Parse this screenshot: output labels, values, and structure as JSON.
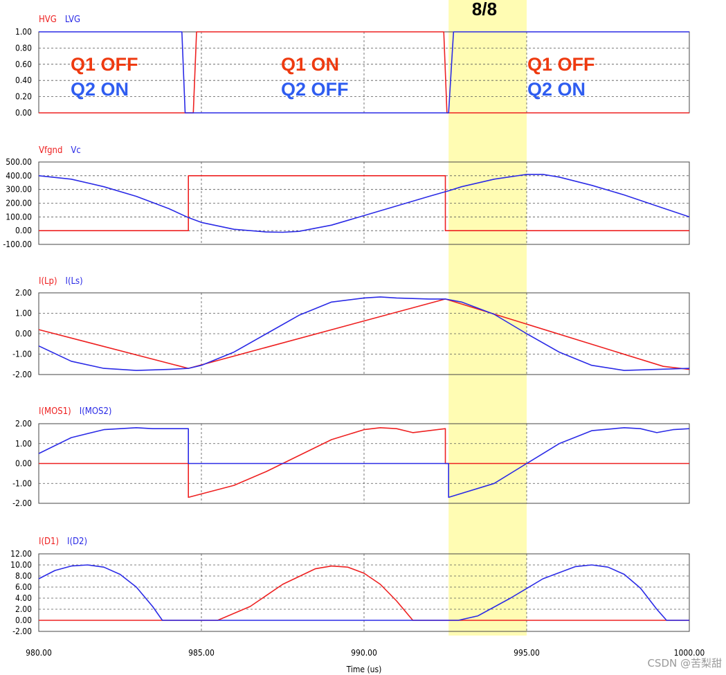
{
  "header_label": "8/8",
  "x_axis": {
    "label": "Time (us)",
    "range": [
      980,
      1000
    ],
    "ticks": [
      "980.00",
      "985.00",
      "990.00",
      "995.00",
      "1000.00"
    ]
  },
  "highlight_band": {
    "x_start": 992.6,
    "x_end": 995.0,
    "color": "#fffcb3"
  },
  "watermark": "CSDN @苦梨甜",
  "colors": {
    "red": "#ee2020",
    "blue": "#2a2ae6",
    "text_red": "#ee3a10",
    "text_blue": "#2f5df0"
  },
  "chart_data": [
    {
      "type": "line",
      "legend": [
        "HVG",
        "LVG"
      ],
      "ylim": [
        0,
        1
      ],
      "ytick_labels": [
        "1.00",
        "0.80",
        "0.60",
        "0.40",
        "0.20",
        "0.00"
      ],
      "grid": true,
      "annotations": [
        {
          "q1": "Q1 OFF",
          "q2": "Q2 ON"
        },
        {
          "q1": "Q1 ON",
          "q2": "Q2 OFF"
        },
        {
          "q1": "Q1 OFF",
          "q2": "Q2 ON"
        }
      ],
      "series": [
        {
          "name": "HVG",
          "color": "#ee2020",
          "x": [
            980,
            984.75,
            984.75,
            984.85,
            992.45,
            992.55,
            992.55,
            1000
          ],
          "y": [
            0,
            0,
            0,
            1,
            1,
            0,
            0,
            0
          ]
        },
        {
          "name": "LVG",
          "color": "#2a2ae6",
          "x": [
            980,
            984.4,
            984.5,
            984.5,
            992.6,
            992.6,
            992.75,
            1000
          ],
          "y": [
            1,
            1,
            0,
            0,
            0,
            0,
            1,
            1
          ]
        }
      ]
    },
    {
      "type": "line",
      "legend": [
        "Vfgnd",
        "Vc"
      ],
      "ylim": [
        -100,
        500
      ],
      "ytick_labels": [
        "500.00",
        "400.00",
        "300.00",
        "200.00",
        "100.00",
        "0.00",
        "-100.00"
      ],
      "grid": true,
      "series": [
        {
          "name": "Vfgnd",
          "color": "#ee2020",
          "x": [
            980,
            984.6,
            984.6,
            992.5,
            992.5,
            1000
          ],
          "y": [
            0,
            0,
            400,
            400,
            0,
            0
          ]
        },
        {
          "name": "Vc",
          "color": "#2a2ae6",
          "x": [
            980,
            981,
            982,
            983,
            984,
            984.6,
            985,
            986,
            987,
            987.5,
            988,
            989,
            990,
            991,
            992,
            992.6,
            993,
            994,
            995,
            995.5,
            996,
            997,
            998,
            999,
            1000
          ],
          "y": [
            400,
            375,
            320,
            250,
            160,
            95,
            60,
            10,
            -10,
            -12,
            -5,
            40,
            110,
            180,
            250,
            290,
            320,
            375,
            410,
            410,
            390,
            330,
            260,
            180,
            100
          ]
        }
      ]
    },
    {
      "type": "line",
      "legend": [
        "I(Lp)",
        "I(Ls)"
      ],
      "ylim": [
        -2,
        2
      ],
      "ytick_labels": [
        "2.00",
        "1.00",
        "0.00",
        "-1.00",
        "-2.00"
      ],
      "grid": true,
      "series": [
        {
          "name": "I(Lp)",
          "color": "#ee2020",
          "x": [
            980,
            984.6,
            992.5,
            999.2,
            1000
          ],
          "y": [
            0.2,
            -1.7,
            1.7,
            -1.6,
            -1.75
          ]
        },
        {
          "name": "I(Ls)",
          "color": "#2a2ae6",
          "x": [
            980,
            981,
            982,
            983,
            984,
            984.6,
            985,
            986,
            987,
            988,
            989,
            990,
            990.5,
            991,
            992,
            992.5,
            993,
            994,
            995,
            996,
            997,
            998,
            999,
            1000
          ],
          "y": [
            -0.6,
            -1.35,
            -1.7,
            -1.8,
            -1.75,
            -1.7,
            -1.55,
            -0.9,
            0.0,
            0.9,
            1.55,
            1.75,
            1.8,
            1.75,
            1.7,
            1.7,
            1.55,
            0.95,
            0.0,
            -0.9,
            -1.55,
            -1.8,
            -1.75,
            -1.7
          ]
        }
      ]
    },
    {
      "type": "line",
      "legend": [
        "I(MOS1)",
        "I(MOS2)"
      ],
      "ylim": [
        -2,
        2
      ],
      "ytick_labels": [
        "2.00",
        "1.00",
        "0.00",
        "-1.00",
        "-2.00"
      ],
      "grid": true,
      "series": [
        {
          "name": "I(MOS1)",
          "color": "#ee2020",
          "x": [
            980,
            984.6,
            984.6,
            986,
            987,
            988,
            989,
            990,
            990.5,
            991,
            991.5,
            992.5,
            992.5,
            1000
          ],
          "y": [
            0,
            0,
            -1.7,
            -1.1,
            -0.4,
            0.4,
            1.2,
            1.7,
            1.8,
            1.75,
            1.55,
            1.75,
            0,
            0
          ]
        },
        {
          "name": "I(MOS2)",
          "color": "#2a2ae6",
          "x": [
            980,
            981,
            982,
            983,
            983.5,
            984.5,
            984.6,
            984.6,
            992.6,
            992.6,
            994,
            995,
            996,
            997,
            998,
            998.5,
            999,
            999.5,
            1000
          ],
          "y": [
            0.5,
            1.3,
            1.7,
            1.8,
            1.75,
            1.75,
            1.75,
            0,
            0,
            -1.7,
            -1.0,
            0.0,
            1.0,
            1.65,
            1.8,
            1.75,
            1.55,
            1.7,
            1.75
          ]
        }
      ]
    },
    {
      "type": "line",
      "legend": [
        "I(D1)",
        "I(D2)"
      ],
      "ylim": [
        -2,
        12
      ],
      "ytick_labels": [
        "12.00",
        "10.00",
        "8.00",
        "6.00",
        "4.00",
        "2.00",
        "0.00",
        "-2.00"
      ],
      "grid": true,
      "series": [
        {
          "name": "I(D1)",
          "color": "#ee2020",
          "x": [
            980,
            985.5,
            986.5,
            987.5,
            988.5,
            989,
            989.5,
            990,
            990.5,
            991,
            991.5,
            992,
            1000
          ],
          "y": [
            0,
            0,
            2.5,
            6.5,
            9.3,
            9.8,
            9.6,
            8.5,
            6.5,
            3.5,
            0,
            0,
            0
          ]
        },
        {
          "name": "I(D2)",
          "color": "#2a2ae6",
          "x": [
            980,
            980.5,
            981,
            981.5,
            982,
            982.5,
            983,
            983.5,
            983.8,
            992.9,
            993.5,
            994.5,
            995.5,
            996.5,
            997,
            997.5,
            998,
            998.5,
            999,
            999.3,
            1000
          ],
          "y": [
            7.5,
            9.0,
            9.8,
            10.0,
            9.6,
            8.3,
            6.0,
            2.5,
            0,
            0,
            0.8,
            4.0,
            7.5,
            9.7,
            10.0,
            9.6,
            8.3,
            5.8,
            2.0,
            0,
            0
          ]
        }
      ]
    }
  ]
}
